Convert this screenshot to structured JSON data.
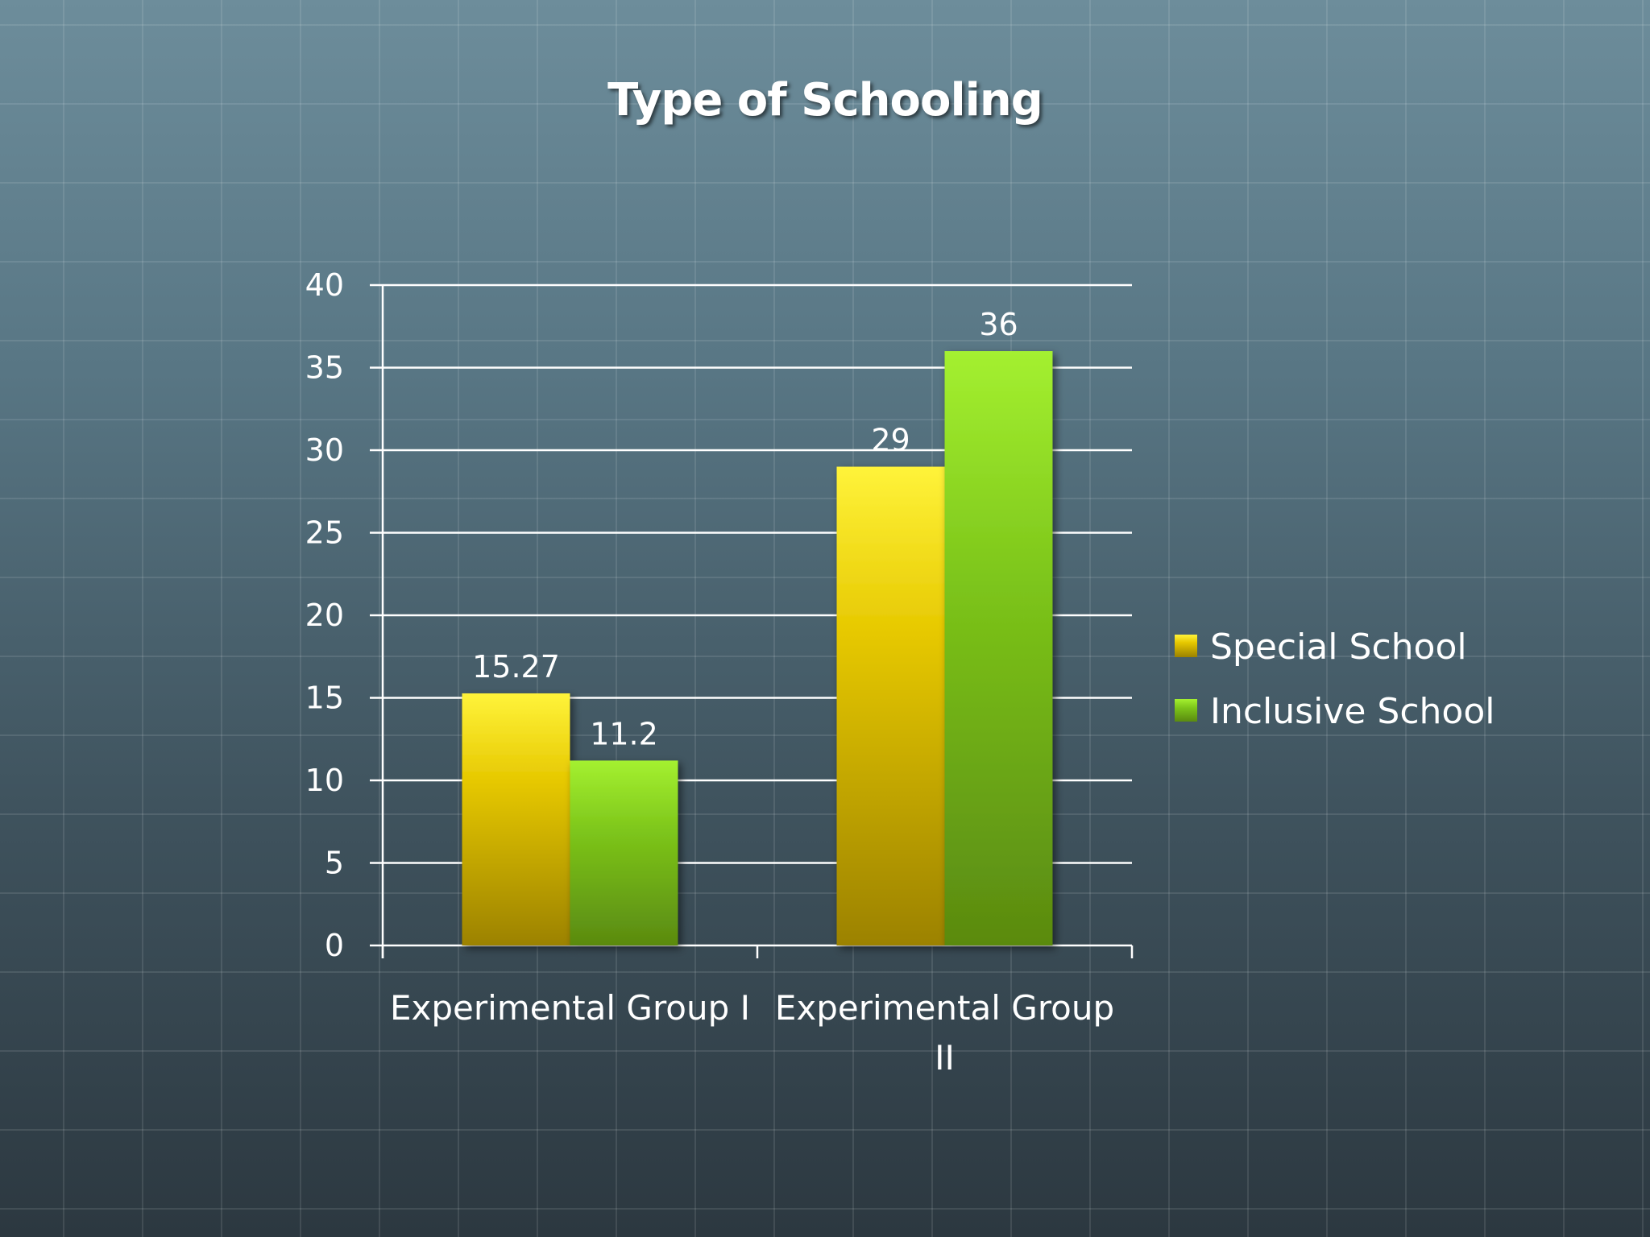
{
  "colors": {
    "special_top": "#fff33a",
    "special_bottom": "#9c8200",
    "inclusive_top": "#a4f030",
    "inclusive_bottom": "#5a8a10",
    "grid": "#ffffff"
  },
  "chart_data": {
    "type": "bar",
    "title": "Type of Schooling",
    "categories": [
      "Experimental Group I",
      "Experimental Group II"
    ],
    "category_label_lines": [
      [
        "Experimental Group I"
      ],
      [
        "Experimental Group",
        "II"
      ]
    ],
    "series": [
      {
        "name": "Special School",
        "values": [
          15.27,
          29
        ],
        "labels": [
          "15.27",
          "29"
        ]
      },
      {
        "name": "Inclusive School",
        "values": [
          11.2,
          36
        ],
        "labels": [
          "11.2",
          "36"
        ]
      }
    ],
    "y_ticks": [
      0,
      5,
      10,
      15,
      20,
      25,
      30,
      35,
      40
    ],
    "ylim": [
      0,
      40
    ],
    "xlabel": "",
    "ylabel": "",
    "grid": true,
    "legend": "right"
  }
}
